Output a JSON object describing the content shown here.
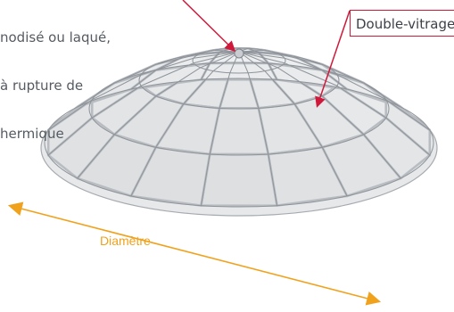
{
  "labels": {
    "frame_lines": [
      "nodisé ou laqué,",
      "à rupture de",
      "hermique"
    ],
    "glazing": "Double-vitrage",
    "diameter": "Diamètre"
  },
  "colors": {
    "callout": "#d0183a",
    "dimension": "#f0a21c",
    "text": "#555b62",
    "frame": "#b9bdc2",
    "glass": "#eef0f2"
  }
}
